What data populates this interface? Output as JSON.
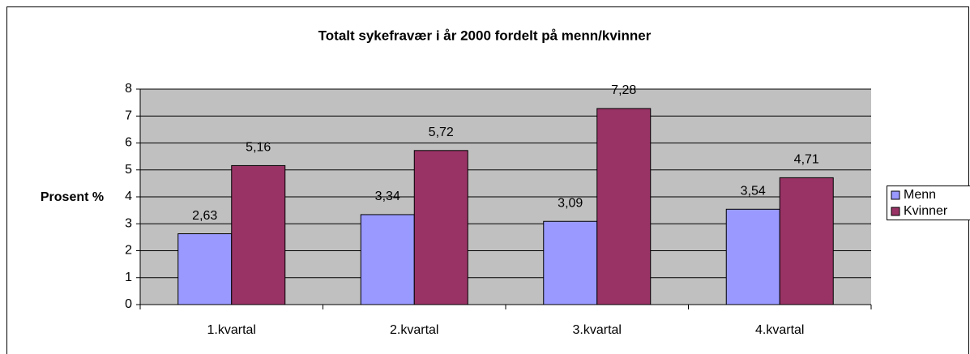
{
  "chart_data": {
    "type": "bar",
    "title": "Totalt sykefravær i år 2000 fordelt på menn/kvinner",
    "y_label": "Prosent %",
    "categories": [
      "1.kvartal",
      "2.kvartal",
      "3.kvartal",
      "4.kvartal"
    ],
    "series": [
      {
        "name": "Menn",
        "color": "#9999ff",
        "values": [
          2.63,
          3.34,
          3.09,
          3.54
        ],
        "value_labels": [
          "2,63",
          "3,34",
          "3,09",
          "3,54"
        ]
      },
      {
        "name": "Kvinner",
        "color": "#993366",
        "values": [
          5.16,
          5.72,
          7.28,
          4.71
        ],
        "value_labels": [
          "5,16",
          "5,72",
          "7,28",
          "4,71"
        ]
      }
    ],
    "ylim": [
      0,
      8
    ],
    "yticks": [
      0,
      1,
      2,
      3,
      4,
      5,
      6,
      7,
      8
    ],
    "grid": true,
    "legend": "right"
  }
}
